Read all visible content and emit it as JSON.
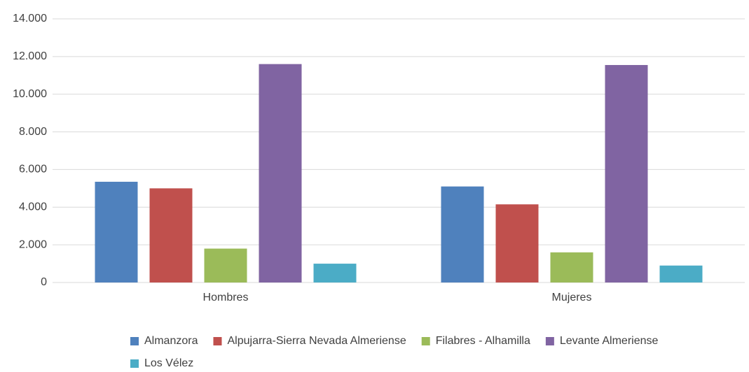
{
  "chart_data": {
    "type": "bar",
    "categories": [
      "Hombres",
      "Mujeres"
    ],
    "series": [
      {
        "name": "Almanzora",
        "color": "#4f81bd",
        "values": [
          5350,
          5100
        ]
      },
      {
        "name": "Alpujarra-Sierra Nevada Almeriense",
        "color": "#c0504d",
        "values": [
          5000,
          4150
        ]
      },
      {
        "name": "Filabres - Alhamilla",
        "color": "#9bbb59",
        "values": [
          1800,
          1600
        ]
      },
      {
        "name": "Levante Almeriense",
        "color": "#8064a2",
        "values": [
          11600,
          11550
        ]
      },
      {
        "name": "Los Vélez",
        "color": "#4bacc6",
        "values": [
          1000,
          900
        ]
      }
    ],
    "ylim": [
      0,
      14000
    ],
    "yticks": [
      0,
      {
        "value": 2000,
        "label": "2.000"
      },
      {
        "value": 4000,
        "label": "4.000"
      },
      {
        "value": 6000,
        "label": "6.000"
      },
      {
        "value": 8000,
        "label": "8.000"
      },
      {
        "value": 10000,
        "label": "10.000"
      },
      {
        "value": 12000,
        "label": "12.000"
      },
      {
        "value": 14000,
        "label": "14.000"
      }
    ],
    "grid": true,
    "legend": "bottom"
  }
}
